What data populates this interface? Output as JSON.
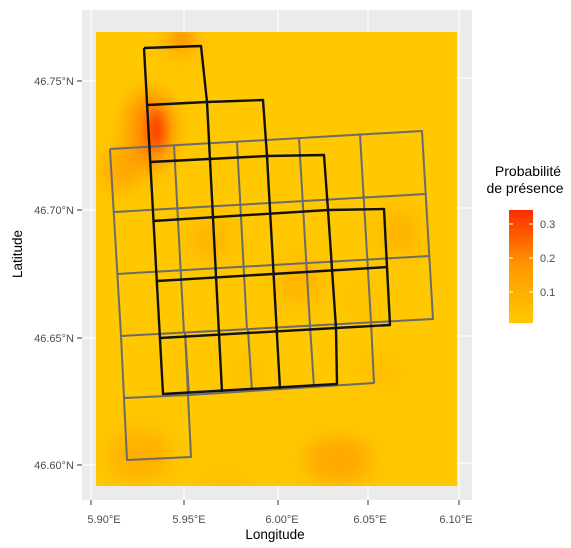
{
  "map": {
    "axes": {
      "xlabel": "Longitude",
      "ylabel": "Latitude",
      "x_ticks": [
        "5.90°E",
        "5.95°E",
        "6.00°E",
        "6.05°E",
        "6.10°E"
      ],
      "y_ticks": [
        "46.75°N",
        "46.70°N",
        "46.65°N",
        "46.60°N"
      ]
    },
    "legend": {
      "title_line1": "Probabilité",
      "title_line2": "de présence",
      "ticks": [
        "0.3",
        "0.2",
        "0.1"
      ]
    },
    "colors": {
      "panel_bg": "#ebebeb",
      "grid": "#ffffff",
      "raster_low": "#ffc800",
      "raster_mid": "#ff9a00",
      "raster_high": "#ff2a00",
      "grid_gray": "#6b6b6b",
      "grid_black": "#111111"
    }
  }
}
